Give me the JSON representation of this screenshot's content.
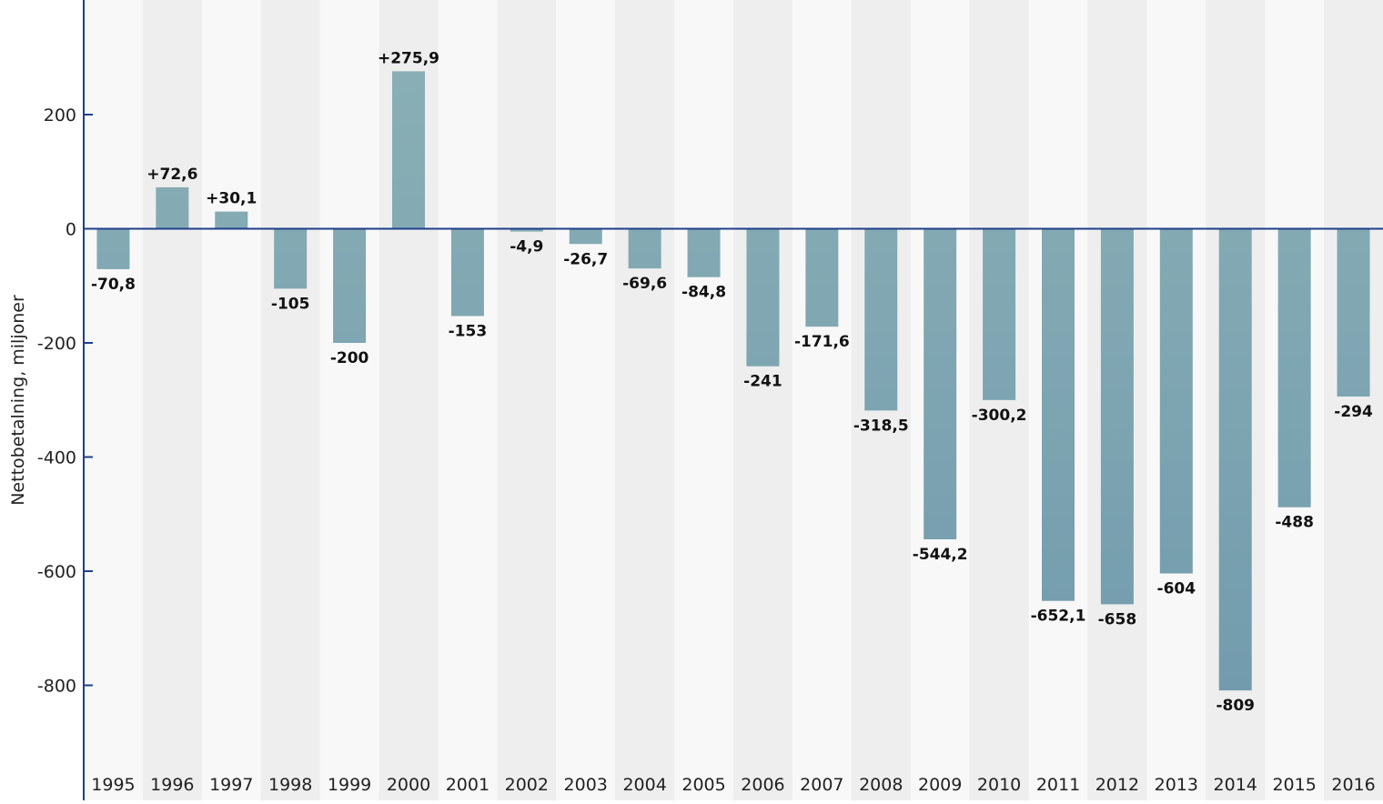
{
  "chart_data": {
    "type": "bar",
    "ylabel": "Nettobetalning, miljoner",
    "ylim": [
      -950,
      400
    ],
    "yticks": [
      200,
      0,
      -200,
      -400,
      -600,
      -800
    ],
    "ytick_labels": [
      "200",
      "0",
      "-200",
      "-400",
      "-600",
      "-800"
    ],
    "categories": [
      "1995",
      "1996",
      "1997",
      "1998",
      "1999",
      "2000",
      "2001",
      "2002",
      "2003",
      "2004",
      "2005",
      "2006",
      "2007",
      "2008",
      "2009",
      "2010",
      "2011",
      "2012",
      "2013",
      "2014",
      "2015",
      "2016"
    ],
    "values": [
      -70.8,
      72.6,
      30.1,
      -105,
      -200,
      275.9,
      -153,
      -4.9,
      -26.7,
      -69.6,
      -84.8,
      -241,
      -171.6,
      -318.5,
      -544.2,
      -300.2,
      -652.1,
      -658,
      -604,
      -809,
      -488,
      -294
    ],
    "value_labels": [
      "-70,8",
      "+72,6",
      "+30,1",
      "-105",
      "-200",
      "+275,9",
      "-153",
      "-4,9",
      "-26,7",
      "-69,6",
      "-84,8",
      "-241",
      "-171,6",
      "-318,5",
      "-544,2",
      "-300,2",
      "-652,1",
      "-658",
      "-604",
      "-809",
      "-488",
      "-294"
    ],
    "colors": {
      "bar_top": "#8cb1b6",
      "bar_bottom": "#6e98ac",
      "band_light": "#f8f8f8",
      "band_dark": "#eeeeee",
      "axis": "#1f3f8a"
    },
    "grid": false,
    "legend": "none"
  }
}
